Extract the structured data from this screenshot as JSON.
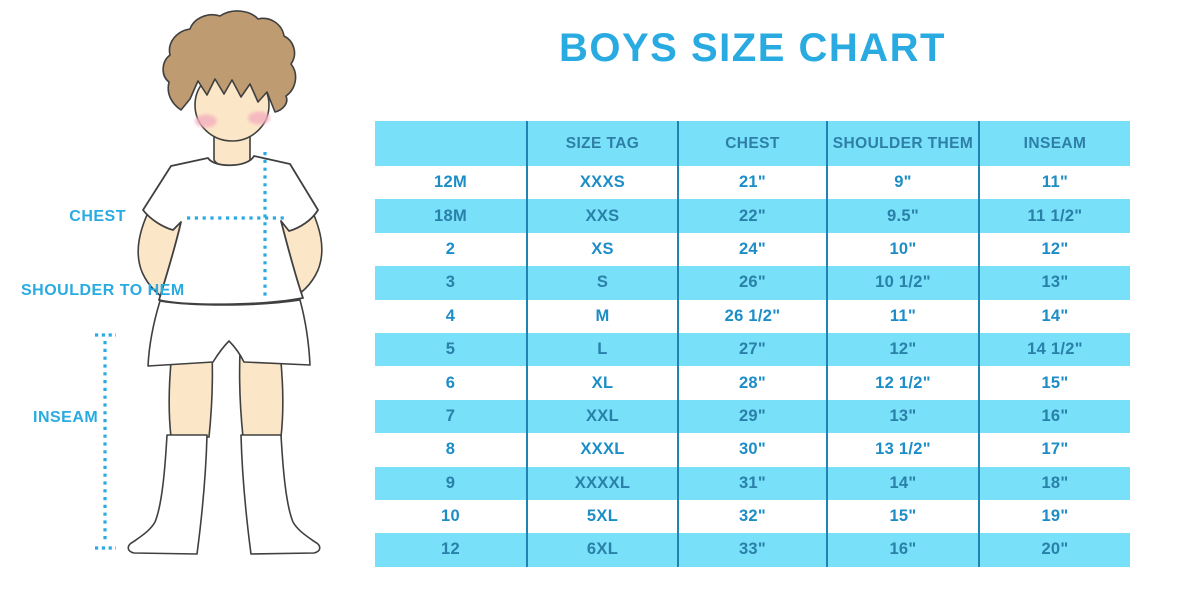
{
  "title": "BOYS SIZE CHART",
  "colors": {
    "accent_blue": "#29ABE2",
    "band_cyan": "#78E0F8",
    "header_text": "#2E7FA6",
    "row_text": "#1C8DC7",
    "row_text_on_cyan": "#2980A9",
    "divider": "#2182B4",
    "skin": "#FBE7C8",
    "hair": "#BE9B70",
    "blush": "#F4AFBE",
    "outline": "#404040"
  },
  "diagram": {
    "figure": "boy-illustration",
    "labels": {
      "chest": "CHEST",
      "shoulder_to_hem": "SHOULDER TO HEM",
      "inseam": "INSEAM"
    }
  },
  "table": {
    "headers": [
      "",
      "SIZE TAG",
      "CHEST",
      "SHOULDER THEM",
      "INSEAM"
    ],
    "rows": [
      [
        "12M",
        "XXXS",
        "21\"",
        "9\"",
        "11\""
      ],
      [
        "18M",
        "XXS",
        "22\"",
        "9.5\"",
        "11 1/2\""
      ],
      [
        "2",
        "XS",
        "24\"",
        "10\"",
        "12\""
      ],
      [
        "3",
        "S",
        "26\"",
        "10 1/2\"",
        "13\""
      ],
      [
        "4",
        "M",
        "26 1/2\"",
        "11\"",
        "14\""
      ],
      [
        "5",
        "L",
        "27\"",
        "12\"",
        "14 1/2\""
      ],
      [
        "6",
        "XL",
        "28\"",
        "12 1/2\"",
        "15\""
      ],
      [
        "7",
        "XXL",
        "29\"",
        "13\"",
        "16\""
      ],
      [
        "8",
        "XXXL",
        "30\"",
        "13 1/2\"",
        "17\""
      ],
      [
        "9",
        "XXXXL",
        "31\"",
        "14\"",
        "18\""
      ],
      [
        "10",
        "5XL",
        "32\"",
        "15\"",
        "19\""
      ],
      [
        "12",
        "6XL",
        "33\"",
        "16\"",
        "20\""
      ]
    ]
  },
  "chart_data": {
    "type": "table",
    "title": "BOYS SIZE CHART",
    "columns": [
      "",
      "SIZE TAG",
      "CHEST",
      "SHOULDER THEM",
      "INSEAM"
    ],
    "rows": [
      [
        "12M",
        "XXXS",
        "21\"",
        "9\"",
        "11\""
      ],
      [
        "18M",
        "XXS",
        "22\"",
        "9.5\"",
        "11 1/2\""
      ],
      [
        "2",
        "XS",
        "24\"",
        "10\"",
        "12\""
      ],
      [
        "3",
        "S",
        "26\"",
        "10 1/2\"",
        "13\""
      ],
      [
        "4",
        "M",
        "26 1/2\"",
        "11\"",
        "14\""
      ],
      [
        "5",
        "L",
        "27\"",
        "12\"",
        "14 1/2\""
      ],
      [
        "6",
        "XL",
        "28\"",
        "12 1/2\"",
        "15\""
      ],
      [
        "7",
        "XXL",
        "29\"",
        "13\"",
        "16\""
      ],
      [
        "8",
        "XXXL",
        "30\"",
        "13 1/2\"",
        "17\""
      ],
      [
        "9",
        "XXXXL",
        "31\"",
        "14\"",
        "18\""
      ],
      [
        "10",
        "5XL",
        "32\"",
        "15\"",
        "19\""
      ],
      [
        "12",
        "6XL",
        "33\"",
        "16\"",
        "20\""
      ]
    ]
  }
}
